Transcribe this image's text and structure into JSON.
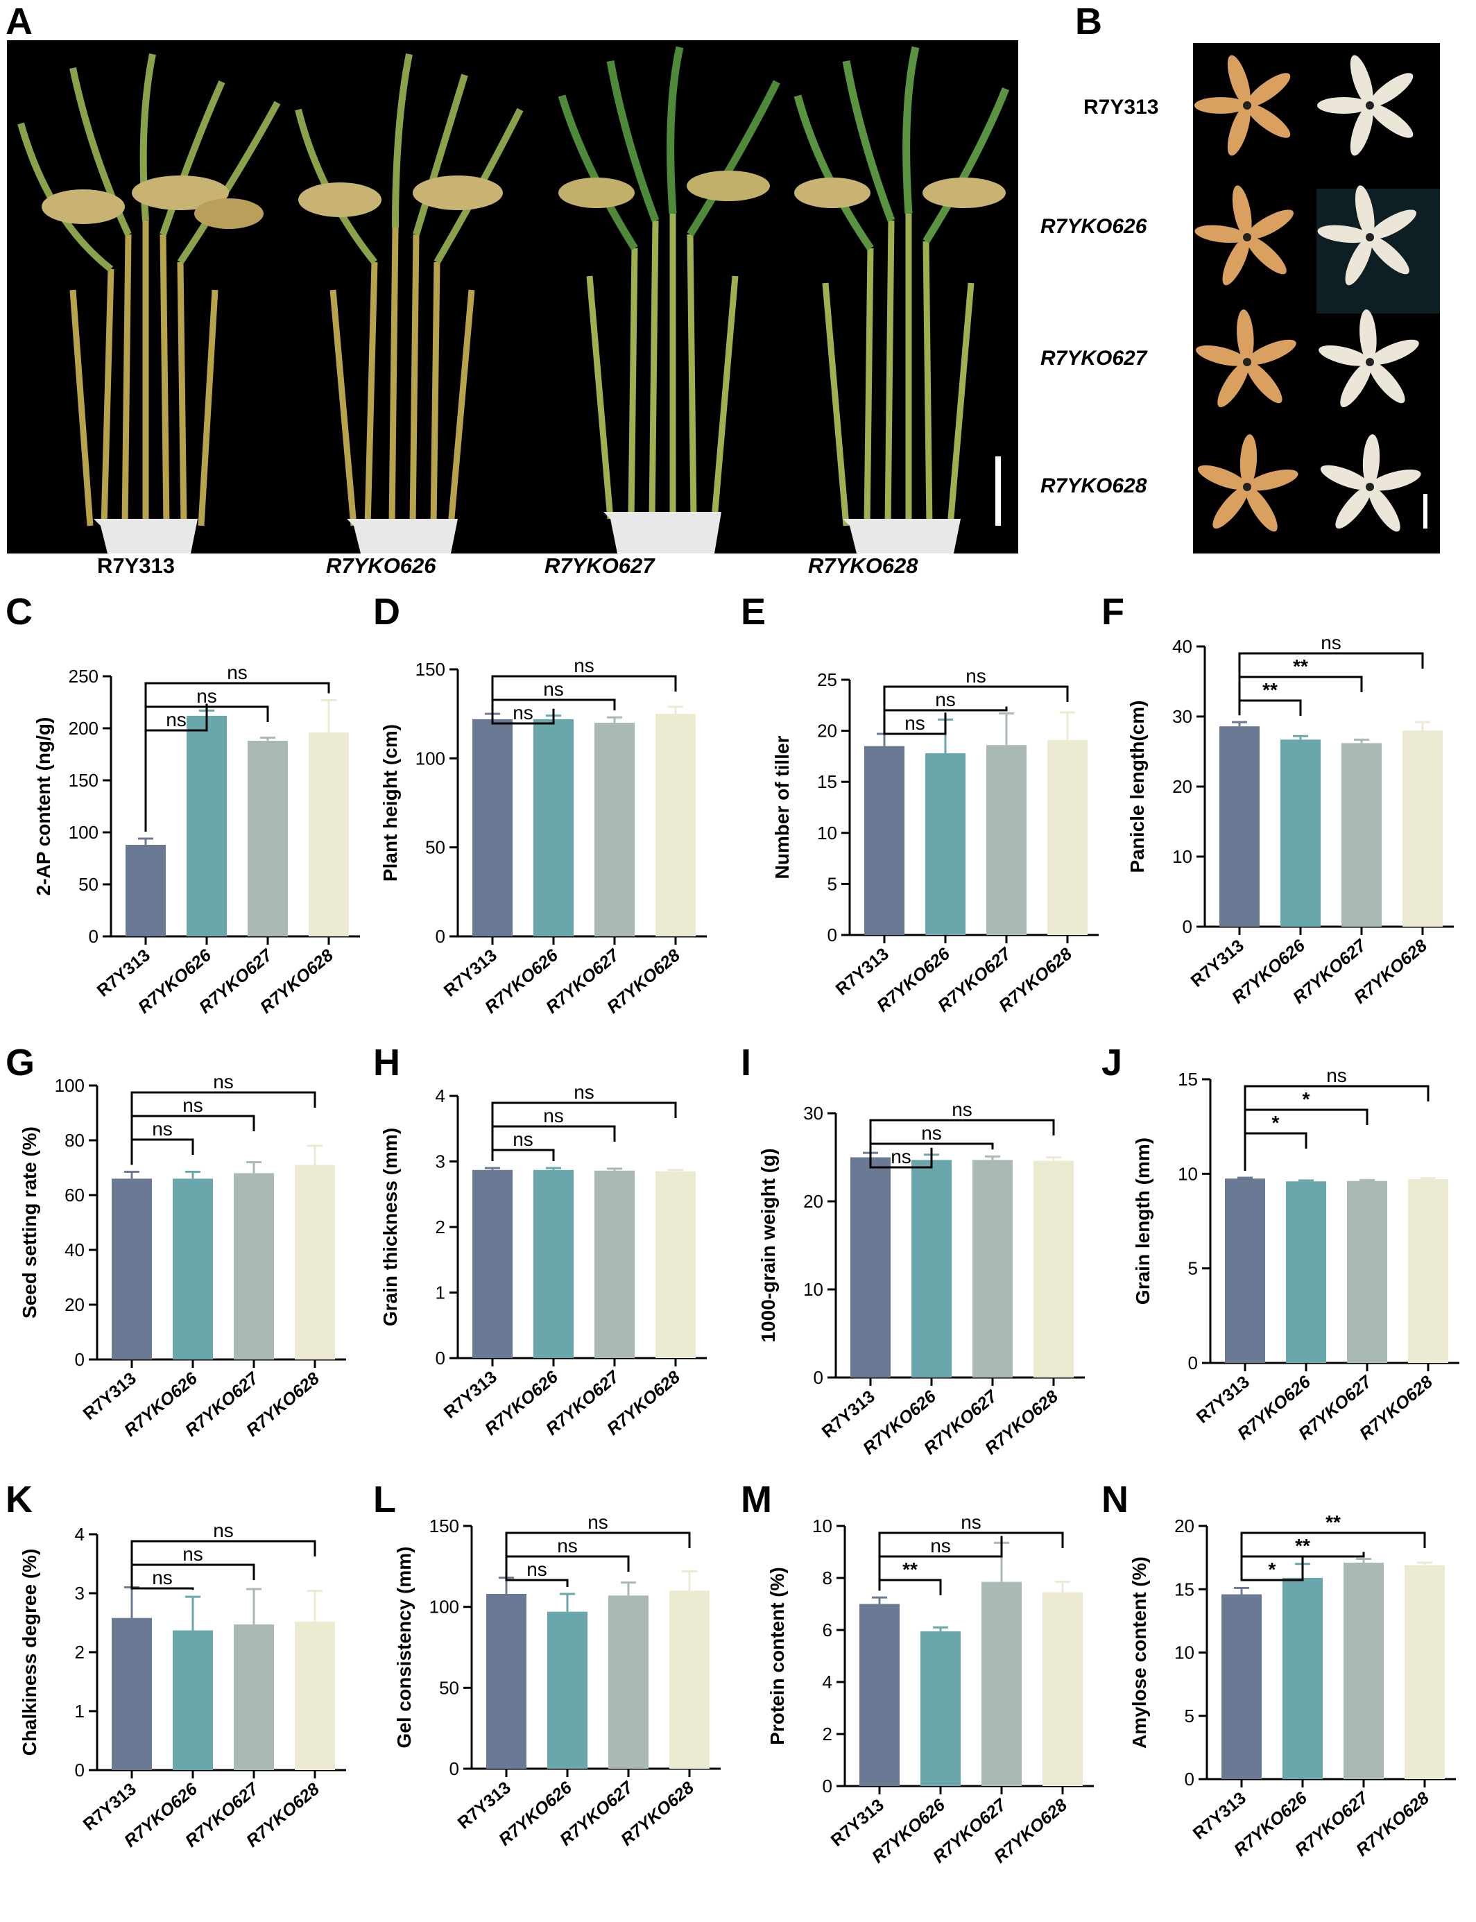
{
  "colors": {
    "bars": [
      "#6b7a94",
      "#6aa7ad",
      "#a9bab2",
      "#ecead0"
    ],
    "photo_background": "#000000",
    "scale_bar": "#ffffff"
  },
  "panel_a": {
    "letter": "A",
    "captions": [
      "R7Y313",
      "R7YKO626",
      "R7YKO627",
      "R7YKO628"
    ]
  },
  "panel_b": {
    "letter": "B",
    "labels": [
      "R7Y313",
      "R7YKO626",
      "R7YKO627",
      "R7YKO628"
    ]
  },
  "chart_data": [
    {
      "panel": "C",
      "type": "bar",
      "categories": [
        "R7Y313",
        "R7YKO626",
        "R7YKO627",
        "R7YKO628"
      ],
      "values": [
        88,
        212,
        188,
        196
      ],
      "errors": [
        6,
        5,
        3,
        31
      ],
      "ylabel": "2-AP content (ng/g)",
      "ylim": [
        0,
        250
      ],
      "yticks": [
        0,
        50,
        100,
        150,
        200,
        250
      ],
      "comparisons": [
        {
          "from": 0,
          "to": 1,
          "label": "ns"
        },
        {
          "from": 0,
          "to": 2,
          "label": "ns"
        },
        {
          "from": 0,
          "to": 3,
          "label": "ns"
        }
      ]
    },
    {
      "panel": "D",
      "type": "bar",
      "categories": [
        "R7Y313",
        "R7YKO626",
        "R7YKO627",
        "R7YKO628"
      ],
      "values": [
        122,
        122,
        120,
        125
      ],
      "errors": [
        3,
        2,
        3,
        4
      ],
      "ylabel": "Plant height (cm)",
      "ylim": [
        0,
        150
      ],
      "yticks": [
        0,
        50,
        100,
        150
      ],
      "comparisons": [
        {
          "from": 0,
          "to": 1,
          "label": "ns"
        },
        {
          "from": 0,
          "to": 2,
          "label": "ns"
        },
        {
          "from": 0,
          "to": 3,
          "label": "ns"
        }
      ]
    },
    {
      "panel": "E",
      "type": "bar",
      "categories": [
        "R7Y313",
        "R7YKO626",
        "R7YKO627",
        "R7YKO628"
      ],
      "values": [
        18.5,
        17.8,
        18.6,
        19.1
      ],
      "errors": [
        1.2,
        3.3,
        3.1,
        2.7
      ],
      "ylabel": "Number of tiller",
      "ylim": [
        0,
        25
      ],
      "yticks": [
        0,
        5,
        10,
        15,
        20,
        25
      ],
      "comparisons": [
        {
          "from": 0,
          "to": 1,
          "label": "ns"
        },
        {
          "from": 0,
          "to": 2,
          "label": "ns"
        },
        {
          "from": 0,
          "to": 3,
          "label": "ns"
        }
      ]
    },
    {
      "panel": "F",
      "type": "bar",
      "categories": [
        "R7Y313",
        "R7YKO626",
        "R7YKO627",
        "R7YKO628"
      ],
      "values": [
        28.6,
        26.7,
        26.2,
        28.0
      ],
      "errors": [
        0.6,
        0.5,
        0.5,
        1.2
      ],
      "ylabel": "Panicle length(cm)",
      "ylim": [
        0,
        40
      ],
      "yticks": [
        0,
        10,
        20,
        30,
        40
      ],
      "comparisons": [
        {
          "from": 0,
          "to": 1,
          "label": "**"
        },
        {
          "from": 0,
          "to": 2,
          "label": "**"
        },
        {
          "from": 0,
          "to": 3,
          "label": "ns"
        }
      ]
    },
    {
      "panel": "G",
      "type": "bar",
      "categories": [
        "R7Y313",
        "R7YKO626",
        "R7YKO627",
        "R7YKO628"
      ],
      "values": [
        66,
        66,
        68,
        71
      ],
      "errors": [
        2.5,
        2.5,
        4,
        7
      ],
      "ylabel": "Seed setting rate (%)",
      "ylim": [
        0,
        100
      ],
      "yticks": [
        0,
        20,
        40,
        60,
        80,
        100
      ],
      "comparisons": [
        {
          "from": 0,
          "to": 1,
          "label": "ns"
        },
        {
          "from": 0,
          "to": 2,
          "label": "ns"
        },
        {
          "from": 0,
          "to": 3,
          "label": "ns"
        }
      ]
    },
    {
      "panel": "H",
      "type": "bar",
      "categories": [
        "R7Y313",
        "R7YKO626",
        "R7YKO627",
        "R7YKO628"
      ],
      "values": [
        2.87,
        2.87,
        2.86,
        2.85
      ],
      "errors": [
        0.03,
        0.03,
        0.03,
        0.02
      ],
      "ylabel": "Grain thickness (mm)",
      "ylim": [
        0,
        4
      ],
      "yticks": [
        0,
        1,
        2,
        3,
        4
      ],
      "comparisons": [
        {
          "from": 0,
          "to": 1,
          "label": "ns"
        },
        {
          "from": 0,
          "to": 2,
          "label": "ns"
        },
        {
          "from": 0,
          "to": 3,
          "label": "ns"
        }
      ]
    },
    {
      "panel": "I",
      "type": "bar",
      "categories": [
        "R7Y313",
        "R7YKO626",
        "R7YKO627",
        "R7YKO628"
      ],
      "values": [
        25.0,
        24.7,
        24.7,
        24.6
      ],
      "errors": [
        0.5,
        0.6,
        0.4,
        0.4
      ],
      "ylabel": "1000-grain weight (g)",
      "ylim": [
        0,
        30
      ],
      "yticks": [
        0,
        10,
        20,
        30
      ],
      "comparisons": [
        {
          "from": 0,
          "to": 1,
          "label": "ns"
        },
        {
          "from": 0,
          "to": 2,
          "label": "ns"
        },
        {
          "from": 0,
          "to": 3,
          "label": "ns"
        }
      ]
    },
    {
      "panel": "J",
      "type": "bar",
      "categories": [
        "R7Y313",
        "R7YKO626",
        "R7YKO627",
        "R7YKO628"
      ],
      "values": [
        9.75,
        9.6,
        9.62,
        9.72
      ],
      "errors": [
        0.04,
        0.05,
        0.05,
        0.05
      ],
      "ylabel": "Grain length (mm)",
      "ylim": [
        0,
        15
      ],
      "yticks": [
        0,
        5,
        10,
        15
      ],
      "comparisons": [
        {
          "from": 0,
          "to": 1,
          "label": "*"
        },
        {
          "from": 0,
          "to": 2,
          "label": "*"
        },
        {
          "from": 0,
          "to": 3,
          "label": "ns"
        }
      ]
    },
    {
      "panel": "K",
      "type": "bar",
      "categories": [
        "R7Y313",
        "R7YKO626",
        "R7YKO627",
        "R7YKO628"
      ],
      "values": [
        2.58,
        2.37,
        2.47,
        2.52
      ],
      "errors": [
        0.52,
        0.57,
        0.6,
        0.52
      ],
      "ylabel": "Chalkiness degree (%)",
      "ylim": [
        0,
        4
      ],
      "yticks": [
        0,
        1,
        2,
        3,
        4
      ],
      "comparisons": [
        {
          "from": 0,
          "to": 1,
          "label": "ns"
        },
        {
          "from": 0,
          "to": 2,
          "label": "ns"
        },
        {
          "from": 0,
          "to": 3,
          "label": "ns"
        }
      ]
    },
    {
      "panel": "L",
      "type": "bar",
      "categories": [
        "R7Y313",
        "R7YKO626",
        "R7YKO627",
        "R7YKO628"
      ],
      "values": [
        108,
        97,
        107,
        110
      ],
      "errors": [
        10,
        11,
        8,
        12
      ],
      "ylabel": "Gel consistency (mm)",
      "ylim": [
        0,
        150
      ],
      "yticks": [
        0,
        50,
        100,
        150
      ],
      "comparisons": [
        {
          "from": 0,
          "to": 1,
          "label": "ns"
        },
        {
          "from": 0,
          "to": 2,
          "label": "ns"
        },
        {
          "from": 0,
          "to": 3,
          "label": "ns"
        }
      ]
    },
    {
      "panel": "M",
      "type": "bar",
      "categories": [
        "R7Y313",
        "R7YKO626",
        "R7YKO627",
        "R7YKO628"
      ],
      "values": [
        7.0,
        5.95,
        7.85,
        7.45
      ],
      "errors": [
        0.25,
        0.15,
        1.5,
        0.4
      ],
      "ylabel": "Protein content (%)",
      "ylim": [
        0,
        10
      ],
      "yticks": [
        0,
        2,
        4,
        6,
        8,
        10
      ],
      "comparisons": [
        {
          "from": 0,
          "to": 1,
          "label": "**"
        },
        {
          "from": 0,
          "to": 2,
          "label": "ns"
        },
        {
          "from": 0,
          "to": 3,
          "label": "ns"
        }
      ]
    },
    {
      "panel": "N",
      "type": "bar",
      "categories": [
        "R7Y313",
        "R7YKO626",
        "R7YKO627",
        "R7YKO628"
      ],
      "values": [
        14.6,
        15.9,
        17.1,
        16.9
      ],
      "errors": [
        0.5,
        1.1,
        0.3,
        0.2
      ],
      "ylabel": "Amylose content (%)",
      "ylim": [
        0,
        20
      ],
      "yticks": [
        0,
        5,
        10,
        15,
        20
      ],
      "comparisons": [
        {
          "from": 0,
          "to": 1,
          "label": "*"
        },
        {
          "from": 0,
          "to": 2,
          "label": "**"
        },
        {
          "from": 0,
          "to": 3,
          "label": "**"
        }
      ]
    }
  ]
}
